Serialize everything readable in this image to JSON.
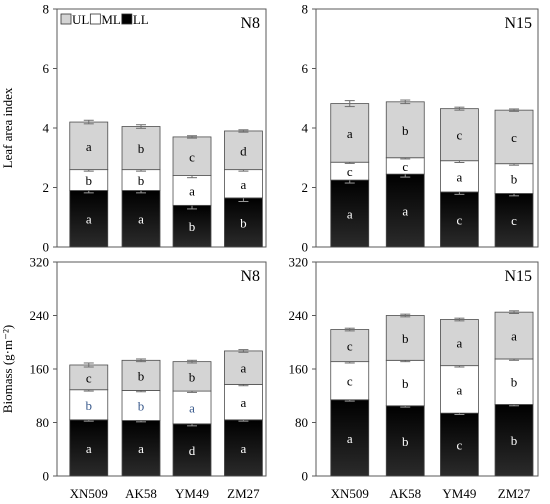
{
  "chart_data": [
    {
      "type": "bar",
      "stacked": true,
      "panel_label": "N8",
      "ylabel": "Leaf area index",
      "ylim": [
        0,
        8
      ],
      "yticks": [
        0,
        2,
        4,
        6,
        8
      ],
      "show_categories": false,
      "legend": {
        "entries": [
          "UL",
          "ML",
          "LL"
        ],
        "position": "top-left"
      },
      "categories": [
        "XN509",
        "AK58",
        "YM49",
        "ZM27"
      ],
      "series": [
        {
          "name": "LL",
          "values": [
            1.9,
            1.9,
            1.4,
            1.65
          ],
          "errors": [
            0.08,
            0.08,
            0.12,
            0.12
          ],
          "labels": [
            "a",
            "a",
            "b",
            "b"
          ]
        },
        {
          "name": "ML",
          "values": [
            0.7,
            0.7,
            1.0,
            0.95
          ],
          "errors": [
            0.05,
            0.05,
            0.07,
            0.05
          ],
          "labels": [
            "b",
            "b",
            "a",
            "a"
          ]
        },
        {
          "name": "UL",
          "values": [
            1.6,
            1.45,
            1.3,
            1.3
          ],
          "errors": [
            0.06,
            0.06,
            0.04,
            0.04
          ],
          "labels": [
            "a",
            "b",
            "c",
            "d"
          ]
        }
      ]
    },
    {
      "type": "bar",
      "stacked": true,
      "panel_label": "N15",
      "ylabel": "",
      "ylim": [
        0,
        8
      ],
      "yticks": [
        0,
        2,
        4,
        6,
        8
      ],
      "show_categories": false,
      "categories": [
        "XN509",
        "AK58",
        "YM49",
        "ZM27"
      ],
      "series": [
        {
          "name": "LL",
          "values": [
            2.25,
            2.45,
            1.85,
            1.8
          ],
          "errors": [
            0.1,
            0.1,
            0.08,
            0.08
          ],
          "labels": [
            "a",
            "a",
            "c",
            "c"
          ]
        },
        {
          "name": "ML",
          "values": [
            0.6,
            0.55,
            1.05,
            1.0
          ],
          "errors": [
            0.04,
            0.04,
            0.06,
            0.05
          ],
          "labels": [
            "c",
            "c",
            "a",
            "b"
          ]
        },
        {
          "name": "UL",
          "values": [
            1.97,
            1.88,
            1.75,
            1.8
          ],
          "errors": [
            0.1,
            0.06,
            0.05,
            0.04
          ],
          "labels": [
            "a",
            "b",
            "c",
            "c"
          ]
        }
      ]
    },
    {
      "type": "bar",
      "stacked": true,
      "panel_label": "N8",
      "ylabel": "Biomass (g·m⁻²)",
      "ylim": [
        0,
        320
      ],
      "yticks": [
        0,
        80,
        160,
        240,
        320
      ],
      "show_categories": true,
      "categories": [
        "XN509",
        "AK58",
        "YM49",
        "ZM27"
      ],
      "series": [
        {
          "name": "LL",
          "values": [
            84,
            83,
            78,
            84
          ],
          "errors": [
            2,
            2,
            3,
            2
          ],
          "labels": [
            "a",
            "a",
            "d",
            "a"
          ]
        },
        {
          "name": "ML",
          "values": [
            45,
            45,
            49,
            53
          ],
          "errors": [
            2,
            2,
            2,
            2
          ],
          "labels": [
            "b",
            "b",
            "a",
            "a"
          ]
        },
        {
          "name": "UL",
          "values": [
            37,
            45,
            44,
            50
          ],
          "errors": [
            3,
            2,
            2,
            2
          ],
          "labels": [
            "c",
            "b",
            "b",
            "a"
          ]
        }
      ]
    },
    {
      "type": "bar",
      "stacked": true,
      "panel_label": "N15",
      "ylabel": "",
      "ylim": [
        0,
        320
      ],
      "yticks": [
        0,
        80,
        160,
        240,
        320
      ],
      "show_categories": true,
      "categories": [
        "XN509",
        "AK58",
        "YM49",
        "ZM27"
      ],
      "series": [
        {
          "name": "LL",
          "values": [
            114,
            105,
            94,
            107
          ],
          "errors": [
            2,
            2,
            2,
            2
          ],
          "labels": [
            "a",
            "b",
            "c",
            "b"
          ]
        },
        {
          "name": "ML",
          "values": [
            57,
            68,
            71,
            68
          ],
          "errors": [
            2,
            2,
            2,
            2
          ],
          "labels": [
            "c",
            "b",
            "a",
            "b"
          ]
        },
        {
          "name": "UL",
          "values": [
            48,
            67,
            69,
            70
          ],
          "errors": [
            2,
            2,
            2,
            2
          ],
          "labels": [
            "c",
            "b",
            "a",
            "a"
          ]
        }
      ]
    }
  ],
  "style": {
    "colors": {
      "LL_top": "#000000",
      "LL_bottom": "#2b2b2b",
      "ML": "#ffffff",
      "UL": "#d4d4d4",
      "ML_label_blue": "#3a5a8c",
      "axis": "#595959"
    },
    "blue_ml_labels": [
      [
        2,
        0
      ],
      [
        2,
        1
      ],
      [
        2,
        2
      ]
    ]
  }
}
